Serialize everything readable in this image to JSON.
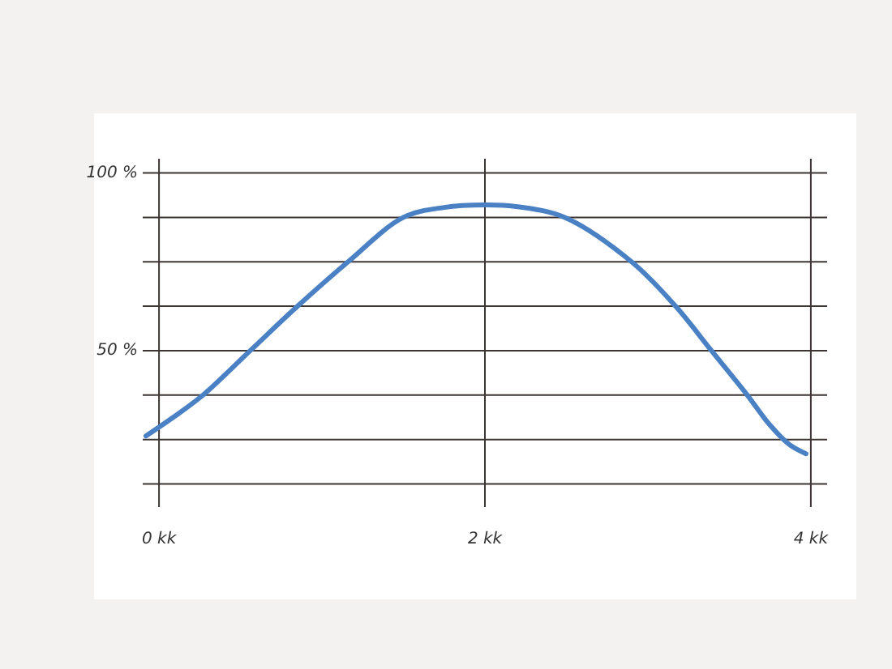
{
  "chart_data": {
    "type": "line",
    "x": [
      -0.08,
      0.08,
      0.27,
      0.56,
      0.85,
      1.16,
      1.5,
      1.75,
      2.0,
      2.2,
      2.49,
      2.9,
      3.17,
      3.39,
      3.61,
      3.75,
      3.87,
      3.97
    ],
    "values": [
      26,
      31,
      37.5,
      50,
      62.5,
      75,
      87.5,
      90.3,
      91,
      90.5,
      87.5,
      75,
      62.5,
      50,
      37.5,
      29,
      23.5,
      21
    ],
    "color": "#4a80c4",
    "xlim": [
      -0.1,
      4.1
    ],
    "ylim": [
      6,
      104
    ],
    "xticks": [
      {
        "value": 0,
        "label": "0 kk"
      },
      {
        "value": 2,
        "label": "2 kk"
      },
      {
        "value": 4,
        "label": "4 kk"
      }
    ],
    "yticks": [
      {
        "value": 12.5,
        "label": null
      },
      {
        "value": 25,
        "label": null
      },
      {
        "value": 37.5,
        "label": null
      },
      {
        "value": 50,
        "label": "50 %"
      },
      {
        "value": 62.5,
        "label": null
      },
      {
        "value": 75,
        "label": null
      },
      {
        "value": 87.5,
        "label": null
      },
      {
        "value": 100,
        "label": "100 %"
      }
    ],
    "grid": true
  }
}
